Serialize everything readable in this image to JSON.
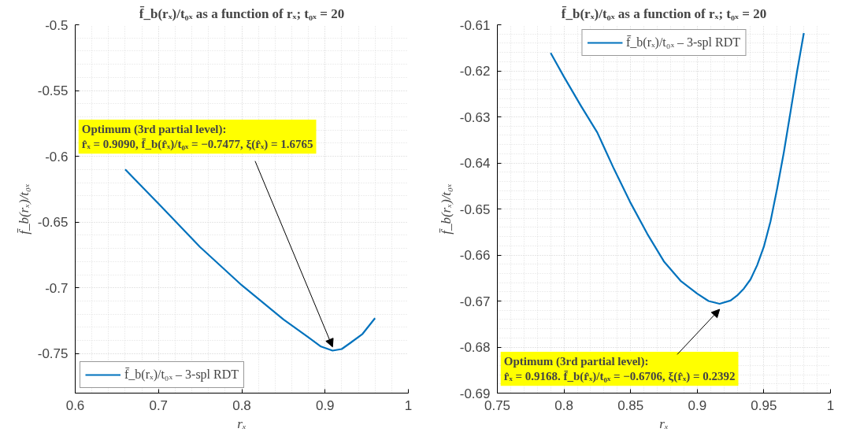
{
  "chart_data": [
    {
      "type": "line",
      "title": "f̄_b(rₓ)/t₀ₓ as a function of rₓ; t₀ₓ = 20",
      "xlabel": "rₓ",
      "ylabel": "f̄_b(rₓ)/t₀ₓ",
      "x": [
        0.66,
        0.7,
        0.75,
        0.8,
        0.85,
        0.88,
        0.895,
        0.909,
        0.92,
        0.93,
        0.945,
        0.96
      ],
      "series": [
        {
          "name": "f̄_b(rₓ)/t₀ₓ – 3-spl RDT",
          "color": "#0072bd",
          "values": [
            -0.61,
            -0.636,
            -0.669,
            -0.698,
            -0.724,
            -0.7376,
            -0.7446,
            -0.7477,
            -0.7465,
            -0.742,
            -0.735,
            -0.723
          ]
        }
      ],
      "xlim": [
        0.6,
        1
      ],
      "xticks": [
        0.6,
        0.7,
        0.8,
        0.9,
        1
      ],
      "ylim": [
        -0.78,
        -0.5
      ],
      "yticks": [
        -0.75,
        -0.7,
        -0.65,
        -0.6,
        -0.55,
        -0.5
      ],
      "annotations": [
        {
          "text": "Optimum (3rd partial level):\nr̂ₓ = 0.9090, f̄_b(r̂ₓ)/t₀ₓ = −0.7477, ξ(r̂ₓ) = 1.6765",
          "x": 0.909,
          "y": -0.7477
        }
      ],
      "grid": true,
      "legend": "bottom left",
      "line_style": "solid",
      "marker": "none"
    },
    {
      "type": "line",
      "title": "f̄_b(rₓ)/t₀ₓ as a function of rₓ; t₀ₓ = 20",
      "xlabel": "rₓ",
      "ylabel": "f̄_b(rₓ)/t₀ₓ",
      "x": [
        0.79,
        0.8,
        0.8125,
        0.825,
        0.8375,
        0.85,
        0.8625,
        0.875,
        0.8875,
        0.9,
        0.9085,
        0.9168,
        0.925,
        0.93,
        0.935,
        0.94,
        0.945,
        0.95,
        0.955,
        0.96,
        0.965,
        0.97,
        0.975,
        0.98
      ],
      "series": [
        {
          "name": "f̄_b(rₓ)/t₀ₓ – 3-spl RDT",
          "color": "#0072bd",
          "values": [
            -0.6161,
            -0.6213,
            -0.6275,
            -0.6334,
            -0.6413,
            -0.6487,
            -0.6554,
            -0.6614,
            -0.6656,
            -0.6684,
            -0.67,
            -0.6706,
            -0.6699,
            -0.6688,
            -0.6673,
            -0.6653,
            -0.6622,
            -0.6582,
            -0.6527,
            -0.6455,
            -0.6377,
            -0.6289,
            -0.62,
            -0.6118
          ]
        }
      ],
      "xlim": [
        0.75,
        1
      ],
      "xticks": [
        0.75,
        0.8,
        0.85,
        0.9,
        0.95,
        1
      ],
      "ylim": [
        -0.69,
        -0.61
      ],
      "yticks": [
        -0.69,
        -0.68,
        -0.67,
        -0.66,
        -0.65,
        -0.64,
        -0.63,
        -0.62,
        -0.61
      ],
      "annotations": [
        {
          "text": "Optimum (3rd partial level):\nr̂ₓ = 0.9168. f̄_b(r̂ₓ)/t₀ₓ = −0.6706, ξ(r̂ₓ) = 0.2392",
          "x": 0.9168,
          "y": -0.6706
        }
      ],
      "grid": true,
      "legend": "top",
      "line_style": "solid",
      "marker": "none"
    }
  ]
}
